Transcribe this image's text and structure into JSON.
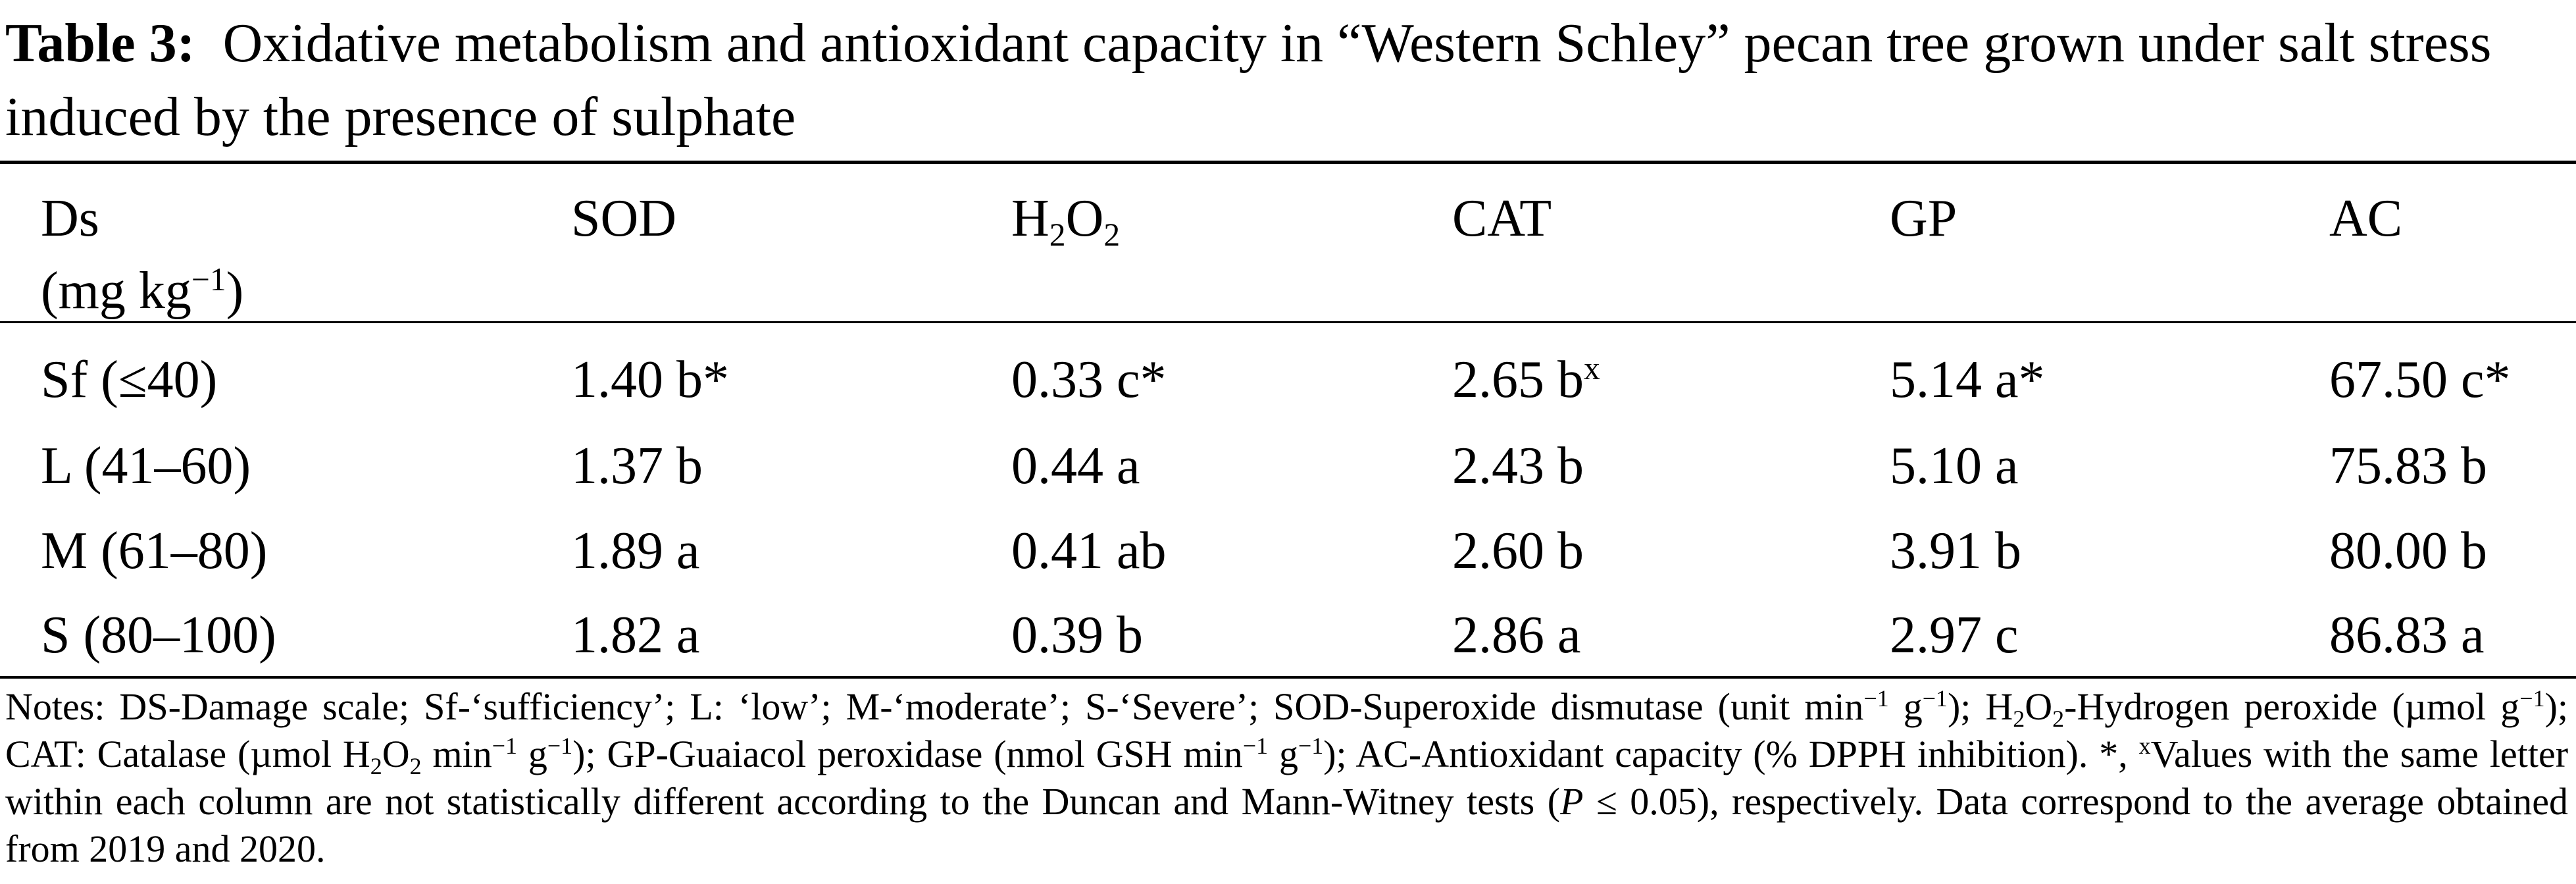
{
  "caption": {
    "label": "Table 3:",
    "text": "Oxidative metabolism and antioxidant capacity in “Western Schley” pecan tree grown under salt stress induced by the presence of sulphate"
  },
  "header": {
    "ds_line1": "Ds",
    "ds_unit_pre": "(mg kg",
    "ds_unit_sup": "−1",
    "ds_unit_post": ")",
    "sod": "SOD",
    "h2o2_h": "H",
    "h2o2_sub1": "2",
    "h2o2_o": "O",
    "h2o2_sub2": "2",
    "cat": "CAT",
    "gp": "GP",
    "ac": "AC"
  },
  "rows": [
    {
      "ds": "Sf (≤40)",
      "sod": "1.40 b*",
      "h2o2": "0.33 c*",
      "cat": "2.65 b",
      "cat_sup": "x",
      "gp": "5.14 a*",
      "ac": "67.50 c*"
    },
    {
      "ds": "L (41–60)",
      "sod": "1.37 b",
      "h2o2": "0.44 a",
      "cat": "2.43 b",
      "gp": "5.10 a",
      "ac": "75.83 b"
    },
    {
      "ds": "M (61–80)",
      "sod": "1.89 a",
      "h2o2": "0.41 ab",
      "cat": "2.60 b",
      "gp": "3.91 b",
      "ac": "80.00 b"
    },
    {
      "ds": "S (80–100)",
      "sod": "1.82 a",
      "h2o2": "0.39 b",
      "cat": "2.86 a",
      "gp": "2.97 c",
      "ac": "86.83 a"
    }
  ],
  "notes": {
    "p1": "Notes: DS-Damage scale; Sf-‘sufficiency’; L: ‘low’; M-‘moderate’; S-‘Severe’; SOD-Superoxide dismutase (unit min",
    "sup1": "−1",
    "p2": " g",
    "sup2": "−1",
    "p3": "); H",
    "sub1": "2",
    "p4": "O",
    "sub2": "2",
    "p5": "-Hydrogen peroxide (µmol g",
    "sup3": "−1",
    "p6": "); CAT: Catalase (µmol H",
    "sub3": "2",
    "p7": "O",
    "sub4": "2",
    "p8": " min",
    "sup4": "−1",
    "p9": " g",
    "sup5": "−1",
    "p10": "); GP-Guaiacol peroxidase (nmol GSH min",
    "sup6": "−1",
    "p11": " g",
    "sup7": "−1",
    "p12": "); AC-Antioxidant capacity (% DPPH inhibition). *, ",
    "sup8": "x",
    "p13": "Values with the same letter within each column are not statistically different according to the Duncan and Mann-Witney tests (",
    "p_italic": "P",
    "p14": " ≤ 0.05), respectively. Data correspond to the average obtained from 2019 and 2020."
  }
}
